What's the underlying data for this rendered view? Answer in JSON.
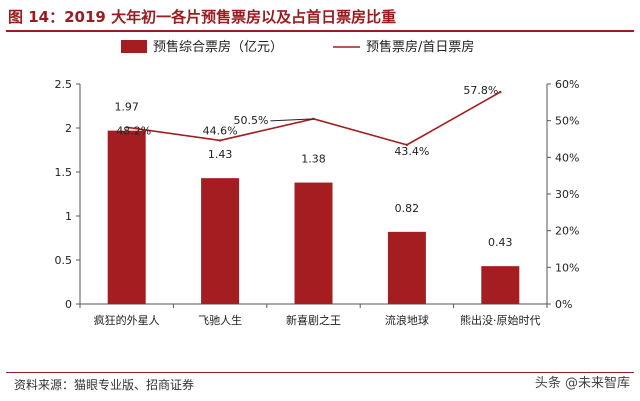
{
  "header": {
    "title": "图 14：2019 大年初一各片预售票房以及占首日票房比重"
  },
  "footer": {
    "source": "资料来源：猫眼专业版、招商证券",
    "watermark": "头条 @未来智库"
  },
  "colors": {
    "bar": "#a31d21",
    "line": "#a31d21",
    "accent": "#9b1c20"
  },
  "chart_data": {
    "type": "bar",
    "title": "",
    "categories": [
      "疯狂的外星人",
      "飞驰人生",
      "新喜剧之王",
      "流浪地球",
      "熊出没·原始时代"
    ],
    "series": [
      {
        "name": "预售综合票房（亿元）",
        "type": "bar",
        "axis": "left",
        "values": [
          1.97,
          1.43,
          1.38,
          0.82,
          0.43
        ],
        "labels": [
          "1.97",
          "1.43",
          "1.38",
          "0.82",
          "0.43"
        ]
      },
      {
        "name": "预售票房/首日票房",
        "type": "line",
        "axis": "right",
        "values": [
          48.2,
          44.6,
          50.5,
          43.4,
          57.8
        ],
        "labels": [
          "48.2%",
          "44.6%",
          "50.5%",
          "43.4%",
          "57.8%"
        ]
      }
    ],
    "y_left": {
      "min": 0,
      "max": 2.5,
      "ticks": [
        "0",
        "0.5",
        "1",
        "1.5",
        "2",
        "2.5"
      ]
    },
    "y_right": {
      "min": 0,
      "max": 60,
      "ticks": [
        "0%",
        "10%",
        "20%",
        "30%",
        "40%",
        "50%",
        "60%"
      ]
    },
    "legend_position": "top",
    "grid": false
  }
}
